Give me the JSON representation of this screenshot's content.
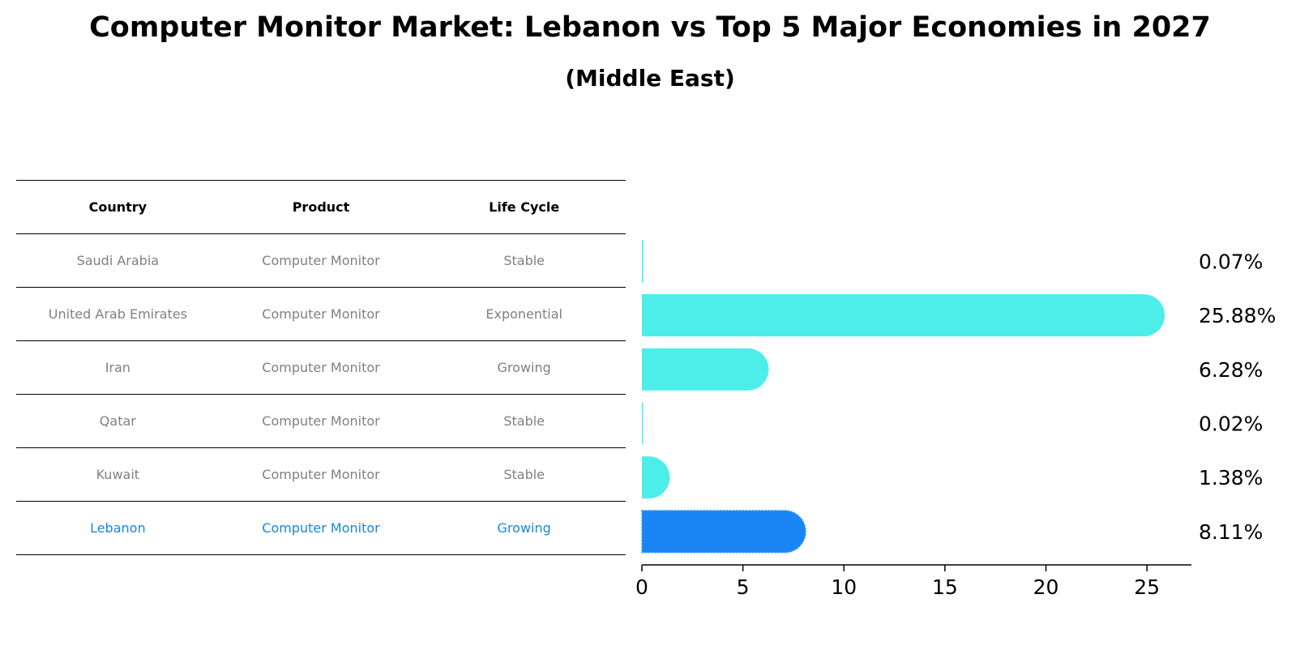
{
  "title": "Computer Monitor Market: Lebanon vs Top 5 Major Economies in 2027",
  "subtitle": "(Middle East)",
  "table": {
    "headers": [
      "Country",
      "Product",
      "Life Cycle"
    ],
    "rows": [
      {
        "country": "Saudi Arabia",
        "product": "Computer Monitor",
        "life_cycle": "Stable"
      },
      {
        "country": "United Arab Emirates",
        "product": "Computer Monitor",
        "life_cycle": "Exponential"
      },
      {
        "country": "Iran",
        "product": "Computer Monitor",
        "life_cycle": "Growing"
      },
      {
        "country": "Qatar",
        "product": "Computer Monitor",
        "life_cycle": "Stable"
      },
      {
        "country": "Kuwait",
        "product": "Computer Monitor",
        "life_cycle": "Stable"
      },
      {
        "country": "Lebanon",
        "product": "Computer Monitor",
        "life_cycle": "Growing"
      }
    ]
  },
  "colors": {
    "bar": "#4deeea",
    "highlight_bar": "#1a86f5",
    "highlight_text": "#1a86d8"
  },
  "chart_data": {
    "type": "bar",
    "orientation": "horizontal",
    "categories": [
      "Saudi Arabia",
      "United Arab Emirates",
      "Iran",
      "Qatar",
      "Kuwait",
      "Lebanon"
    ],
    "values": [
      0.07,
      25.88,
      6.28,
      0.02,
      1.38,
      8.11
    ],
    "value_labels": [
      "0.07%",
      "25.88%",
      "6.28%",
      "0.02%",
      "1.38%",
      "8.11%"
    ],
    "highlight": "Lebanon",
    "xlim": [
      0,
      27.2
    ],
    "xticks": [
      0,
      5,
      10,
      15,
      20,
      25
    ],
    "grid": false
  }
}
